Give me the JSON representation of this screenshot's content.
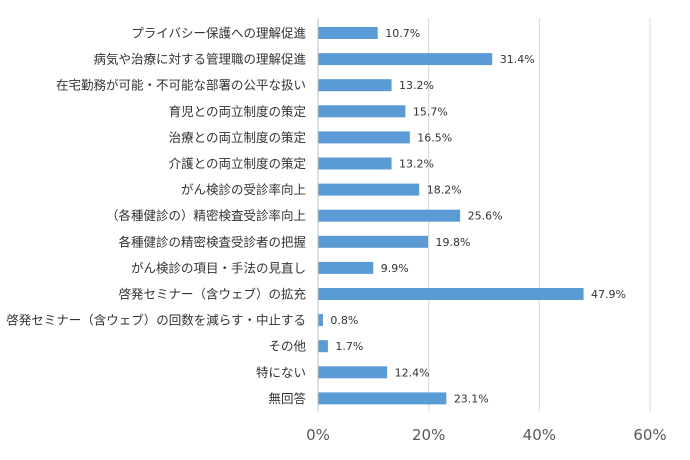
{
  "chart_data": {
    "type": "bar",
    "orientation": "horizontal",
    "categories": [
      "プライバシー保護への理解促進",
      "病気や治療に対する管理職の理解促進",
      "在宅勤務が可能・不可能な部署の公平な扱い",
      "育児との両立制度の策定",
      "治療との両立制度の策定",
      "介護との両立制度の策定",
      "がん検診の受診率向上",
      "（各種健診の）精密検査受診率向上",
      "各種健診の精密検査受診者の把握",
      "がん検診の項目・手法の見直し",
      "啓発セミナー（含ウェブ）の拡充",
      "啓発セミナー（含ウェブ）の回数を減らす・中止する",
      "その他",
      "特にない",
      "無回答"
    ],
    "values": [
      10.7,
      31.4,
      13.2,
      15.7,
      16.5,
      13.2,
      18.2,
      25.6,
      19.8,
      9.9,
      47.9,
      0.8,
      1.7,
      12.4,
      23.1
    ],
    "value_labels": [
      "10.7%",
      "31.4%",
      "13.2%",
      "15.7%",
      "16.5%",
      "13.2%",
      "18.2%",
      "25.6%",
      "19.8%",
      "9.9%",
      "47.9%",
      "0.8%",
      "1.7%",
      "12.4%",
      "23.1%"
    ],
    "xlim": [
      0,
      60
    ],
    "xticks": [
      "0%",
      "20%",
      "40%",
      "60%"
    ],
    "xtick_values": [
      0,
      20,
      40,
      60
    ],
    "grid": true,
    "bar_color": "#5b9bd5",
    "title": "",
    "xlabel": "",
    "ylabel": ""
  }
}
